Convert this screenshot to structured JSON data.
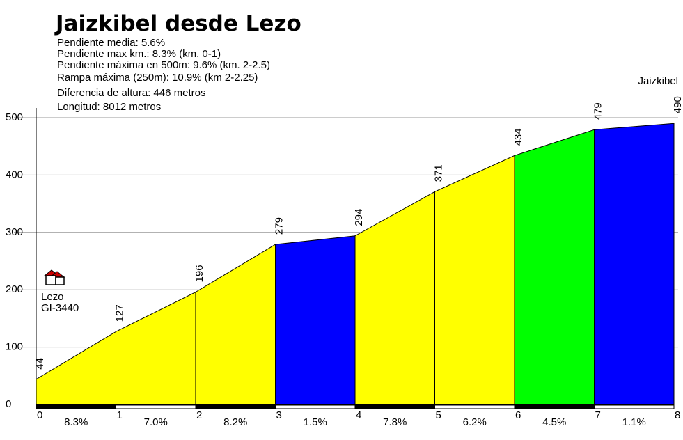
{
  "title": "Jaizkibel desde Lezo",
  "stats": [
    "Pendiente media: 5.6%",
    "Pendiente max km.: 8.3% (km. 0-1)",
    "Pendiente máxima en 500m: 9.6% (km. 2-2.5)",
    "Rampa máxima (250m): 10.9% (km 2-2.25)",
    "Diferencia de altura: 446 metros",
    "Longitud: 8012 metros"
  ],
  "start_place": {
    "name": "Lezo",
    "road": "GI-3440"
  },
  "end_place": {
    "name": "Jaizkibel"
  },
  "chart_data": {
    "type": "area",
    "x": [
      0,
      1,
      2,
      3,
      4,
      5,
      6,
      7,
      8
    ],
    "elevation": [
      44,
      127,
      196,
      279,
      294,
      371,
      434,
      479,
      490
    ],
    "elevation_labels": [
      "44",
      "127",
      "196",
      "279",
      "294",
      "371",
      "434",
      "479",
      "490"
    ],
    "segment_gradients": [
      "8.3%",
      "7.0%",
      "8.2%",
      "1.5%",
      "7.8%",
      "6.2%",
      "4.5%",
      "1.1%"
    ],
    "segment_colors": [
      "#ffff00",
      "#ffff00",
      "#ffff00",
      "#0000ff",
      "#ffff00",
      "#ffff00",
      "#00ff00",
      "#0000ff"
    ],
    "x_ticks": [
      "0",
      "1",
      "2",
      "3",
      "4",
      "5",
      "6",
      "7",
      "8"
    ],
    "y_ticks": [
      "0",
      "100",
      "200",
      "300",
      "400",
      "500"
    ],
    "y_tick_values": [
      0,
      100,
      200,
      300,
      400,
      500
    ],
    "ylim": [
      0,
      500
    ],
    "xlim": [
      0,
      8
    ],
    "grid": true,
    "colors": {
      "grid": "#999999",
      "outline": "#000000",
      "bar_dark": "#000000",
      "bar_light": "#ffffff"
    }
  }
}
